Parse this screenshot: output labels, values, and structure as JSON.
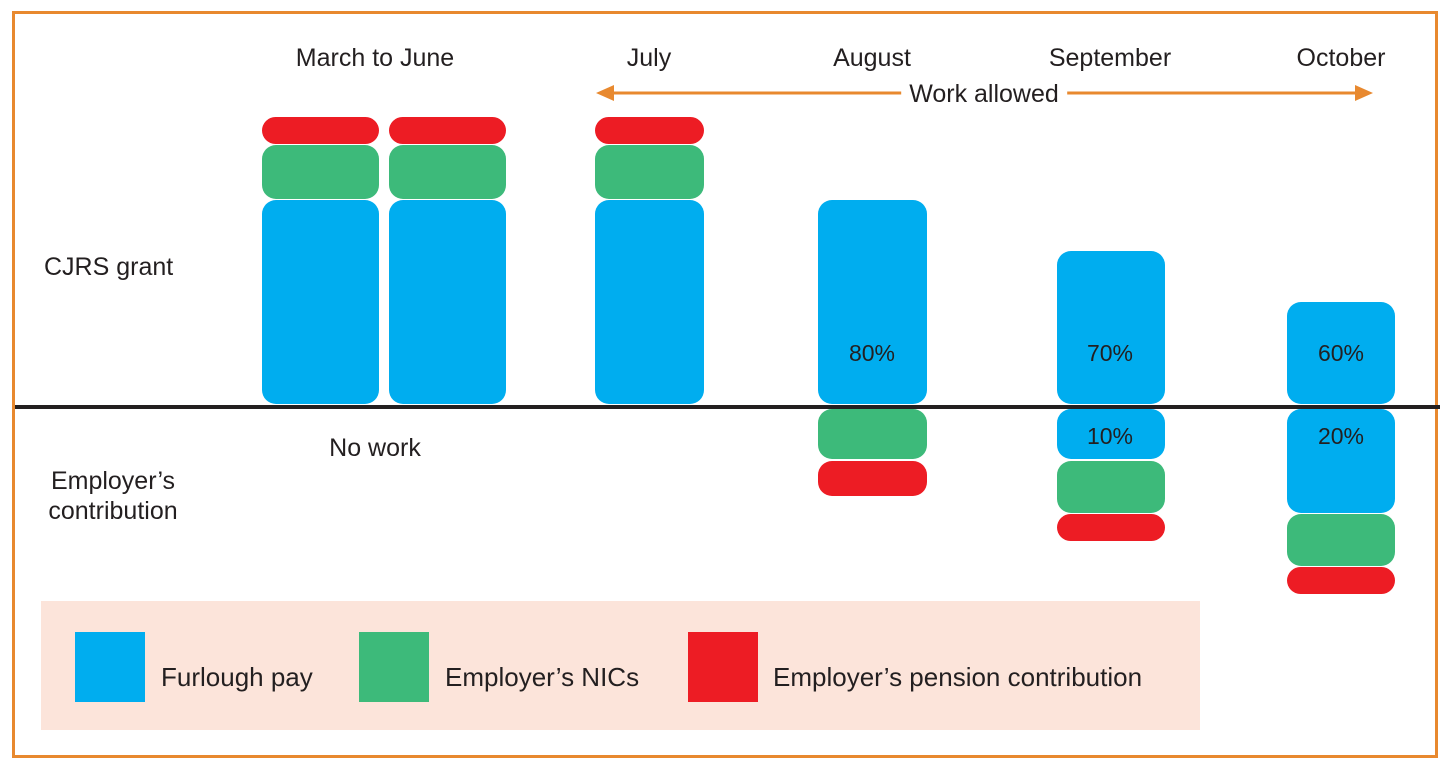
{
  "colors": {
    "frame": "#e8892f",
    "furlough": "#00adef",
    "nics": "#3dba7a",
    "pension": "#ed1c24",
    "legend_bg": "#fce4da",
    "arrow": "#e8892f"
  },
  "months": [
    "March to June",
    "July",
    "August",
    "September",
    "October"
  ],
  "annotations": {
    "work_allowed": "Work allowed",
    "no_work": "No work"
  },
  "rows": {
    "top": "CJRS grant",
    "bottom_line1": "Employer’s",
    "bottom_line2": "contribution"
  },
  "percent_labels": {
    "august_grant": "80%",
    "september_grant": "70%",
    "october_grant": "60%",
    "september_employer": "10%",
    "october_employer": "20%"
  },
  "legend": {
    "furlough": "Furlough pay",
    "nics": "Employer’s NICs",
    "pension": "Employer’s pension contribution"
  },
  "chart_data": {
    "type": "bar",
    "categories": [
      "March to June",
      "July",
      "August",
      "September",
      "October"
    ],
    "series": [
      {
        "name": "Furlough pay",
        "grant_percent": [
          null,
          null,
          80,
          70,
          60
        ],
        "employer_percent": [
          null,
          null,
          null,
          10,
          20
        ]
      },
      {
        "name": "Employer’s NICs",
        "paid_by": [
          "CJRS grant",
          "CJRS grant",
          "Employer’s contribution",
          "Employer’s contribution",
          "Employer’s contribution"
        ]
      },
      {
        "name": "Employer’s pension contribution",
        "paid_by": [
          "CJRS grant",
          "CJRS grant",
          "Employer’s contribution",
          "Employer’s contribution",
          "Employer’s contribution"
        ]
      }
    ]
  }
}
